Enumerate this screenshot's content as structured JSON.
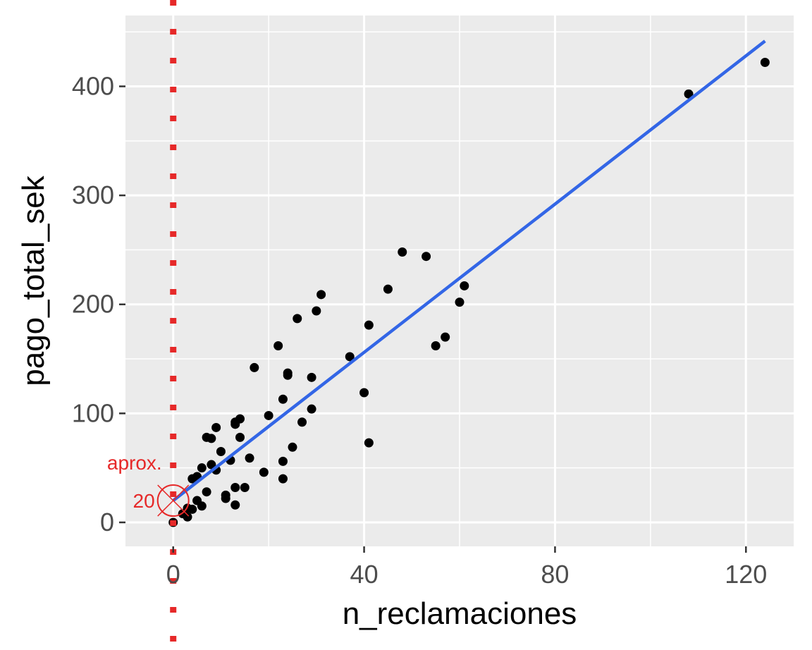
{
  "chart_data": {
    "type": "scatter",
    "title": "",
    "xlabel": "n_reclamaciones",
    "ylabel": "pago_total_sek",
    "xlim": [
      -10,
      130
    ],
    "ylim": [
      -22,
      465
    ],
    "x_ticks": [
      0,
      40,
      80,
      120
    ],
    "y_ticks": [
      0,
      100,
      200,
      300,
      400
    ],
    "grid": true,
    "points": [
      [
        0,
        0
      ],
      [
        2,
        8
      ],
      [
        3,
        5
      ],
      [
        3,
        13
      ],
      [
        4,
        12
      ],
      [
        4,
        40
      ],
      [
        5,
        20
      ],
      [
        5,
        42
      ],
      [
        6,
        15
      ],
      [
        6,
        50
      ],
      [
        7,
        28
      ],
      [
        7,
        78
      ],
      [
        8,
        53
      ],
      [
        8,
        77
      ],
      [
        9,
        87
      ],
      [
        9,
        48
      ],
      [
        10,
        65
      ],
      [
        11,
        25
      ],
      [
        11,
        22
      ],
      [
        12,
        57
      ],
      [
        13,
        32
      ],
      [
        13,
        16
      ],
      [
        13,
        90
      ],
      [
        13,
        92
      ],
      [
        14,
        95
      ],
      [
        14,
        78
      ],
      [
        15,
        32
      ],
      [
        16,
        59
      ],
      [
        17,
        142
      ],
      [
        19,
        46
      ],
      [
        20,
        98
      ],
      [
        22,
        162
      ],
      [
        23,
        113
      ],
      [
        23,
        56
      ],
      [
        23,
        40
      ],
      [
        24,
        137
      ],
      [
        24,
        135
      ],
      [
        25,
        69
      ],
      [
        26,
        187
      ],
      [
        27,
        92
      ],
      [
        29,
        133
      ],
      [
        29,
        104
      ],
      [
        30,
        194
      ],
      [
        31,
        209
      ],
      [
        37,
        152
      ],
      [
        40,
        119
      ],
      [
        41,
        181
      ],
      [
        41,
        73
      ],
      [
        45,
        214
      ],
      [
        48,
        248
      ],
      [
        53,
        244
      ],
      [
        55,
        162
      ],
      [
        57,
        170
      ],
      [
        60,
        202
      ],
      [
        61,
        217
      ],
      [
        108,
        393
      ],
      [
        124,
        422
      ]
    ],
    "fit_line": {
      "intercept": 20,
      "slope": 3.4,
      "x_range": [
        0,
        124
      ],
      "color": "#3366e6"
    },
    "reference_vline": {
      "x": 0,
      "color": "#e62929",
      "style": "dotted"
    },
    "annotation": {
      "text_line1": "aprox.",
      "text_line2": "20",
      "x": 0,
      "y": 20,
      "color": "#e62929"
    },
    "colors": {
      "panel": "#ebebeb",
      "grid": "#ffffff",
      "point": "#000000"
    }
  }
}
